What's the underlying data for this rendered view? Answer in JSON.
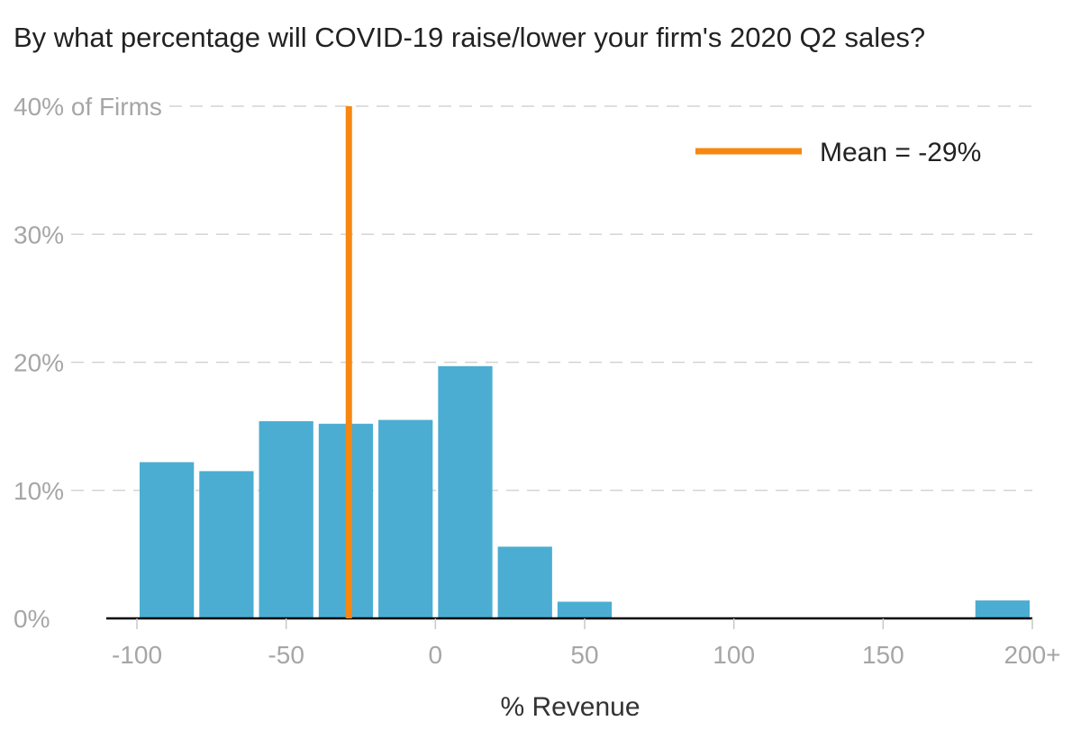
{
  "chart_data": {
    "type": "bar",
    "title": "By what percentage will COVID-19 raise/lower your firm's 2020 Q2 sales?",
    "xlabel": "% Revenue",
    "ylabel": "",
    "y_unit_suffix": " of Firms",
    "xlim": [
      -100,
      200
    ],
    "ylim": [
      0,
      40
    ],
    "x_ticks": [
      {
        "value": -100,
        "label": "-100"
      },
      {
        "value": -50,
        "label": "-50"
      },
      {
        "value": 0,
        "label": "0"
      },
      {
        "value": 50,
        "label": "50"
      },
      {
        "value": 100,
        "label": "100"
      },
      {
        "value": 150,
        "label": "150"
      },
      {
        "value": 200,
        "label": "200+"
      }
    ],
    "y_ticks": [
      {
        "value": 0,
        "label": "0%"
      },
      {
        "value": 10,
        "label": "10%"
      },
      {
        "value": 20,
        "label": "20%"
      },
      {
        "value": 30,
        "label": "30%"
      },
      {
        "value": 40,
        "label": "40% of Firms"
      }
    ],
    "bin_width": 20,
    "bins": [
      {
        "start": -100,
        "end": -80,
        "value": 12.2
      },
      {
        "start": -80,
        "end": -60,
        "value": 11.5
      },
      {
        "start": -60,
        "end": -40,
        "value": 15.4
      },
      {
        "start": -40,
        "end": -20,
        "value": 15.2
      },
      {
        "start": -20,
        "end": 0,
        "value": 15.5
      },
      {
        "start": 0,
        "end": 20,
        "value": 19.7
      },
      {
        "start": 20,
        "end": 40,
        "value": 5.6
      },
      {
        "start": 40,
        "end": 60,
        "value": 1.3
      },
      {
        "start": 180,
        "end": 200,
        "value": 1.4
      }
    ],
    "mean": {
      "value": -29,
      "label": "Mean = -29%"
    },
    "grid": "horizontal-dashed",
    "legend_position": "top-right",
    "colors": {
      "bar": "#4badd2",
      "mean_line": "#f7870f",
      "grid": "#d4d4d4",
      "axis": "#000000",
      "tick_text": "#a6a6a6",
      "title_text": "#222222"
    }
  }
}
